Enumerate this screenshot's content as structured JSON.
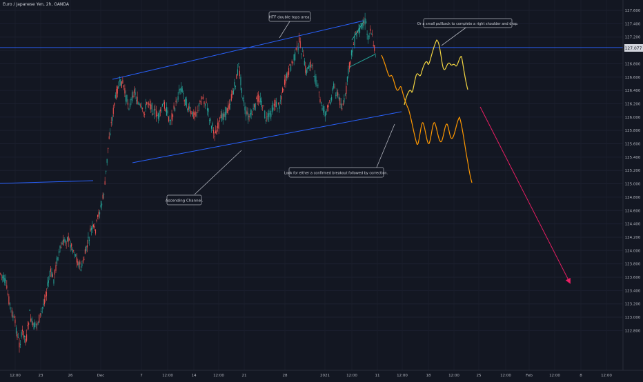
{
  "symbol": "Euro / Japanese Yen, 2h, OANDA",
  "chart_data": {
    "type": "candlestick",
    "y_axis": {
      "ticks": [
        "127.600",
        "127.400",
        "127.200",
        "127.000",
        "126.800",
        "126.600",
        "126.400",
        "126.200",
        "126.000",
        "125.800",
        "125.600",
        "125.400",
        "125.200",
        "125.000",
        "124.800",
        "124.600",
        "124.400",
        "124.200",
        "124.000",
        "123.800",
        "123.600",
        "123.400",
        "123.200",
        "123.000",
        "122.800"
      ],
      "range": [
        122.7,
        127.7
      ],
      "current_price": "127.077"
    },
    "x_axis": {
      "ticks": [
        "12:00",
        "23",
        "26",
        "Dec",
        "7",
        "12:00",
        "14",
        "12:00",
        "21",
        "28",
        "2021",
        "12:00",
        "11",
        "12:00",
        "18",
        "12:00",
        "25",
        "12:00",
        "Feb",
        "12:00",
        "8",
        "12:00"
      ]
    },
    "candles": {
      "count": 360,
      "up_color": "#26a69a",
      "down_color": "#ef5350"
    },
    "annotations": [
      "HTF double tops area.",
      "Or a small pullback to complete a right shoulder and drop.",
      "Look for either a confirmed breakout followed by correction.",
      "Ascending Channel."
    ],
    "colors": {
      "background": "#131722",
      "channel_line": "#2962ff",
      "horizontal_level": "#2962ff",
      "projection_yellow": "#f5d742",
      "projection_orange": "#ff9800",
      "target_arrow": "#e91e63",
      "double_top": "#26a69a"
    }
  }
}
